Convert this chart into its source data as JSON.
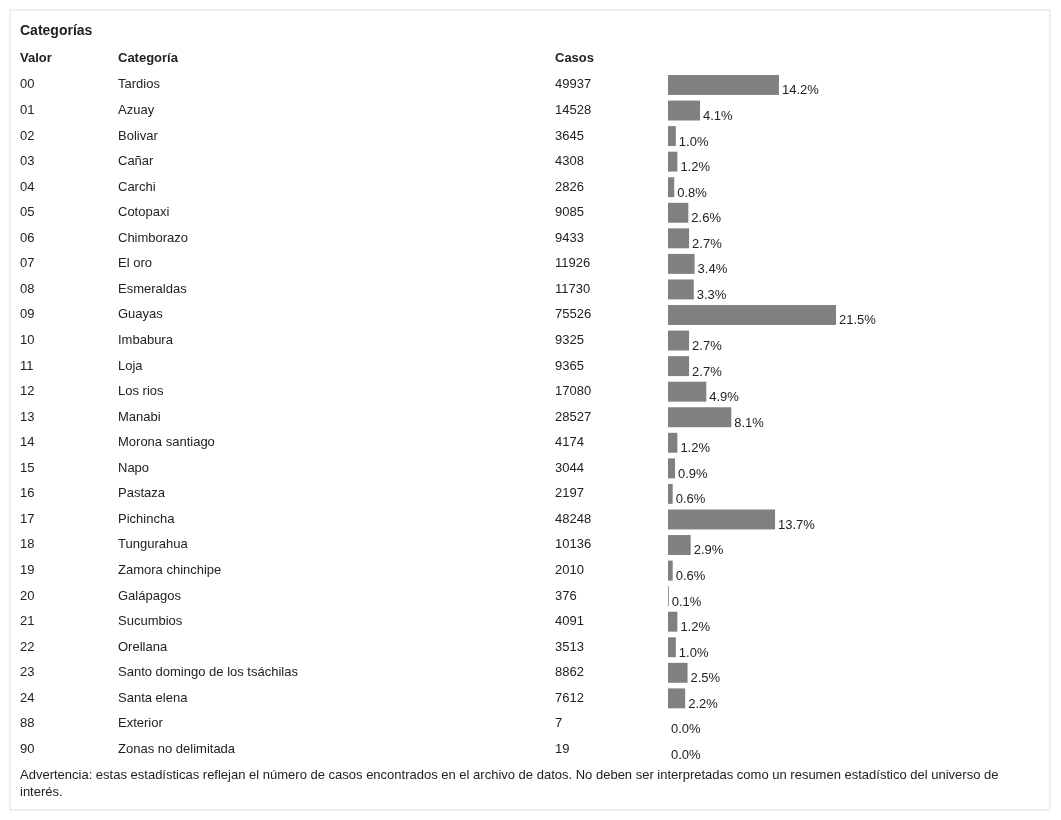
{
  "chart_data": {
    "type": "bar",
    "orientation": "horizontal",
    "title": "Categorías",
    "ylabel": "Categoría",
    "color": "#808080",
    "value_labels": [
      "14.2%",
      "4.1%",
      "1.0%",
      "1.2%",
      "0.8%",
      "2.6%",
      "2.7%",
      "3.4%",
      "3.3%",
      "21.5%",
      "2.7%",
      "2.7%",
      "4.9%",
      "8.1%",
      "1.2%",
      "0.9%",
      "0.6%",
      "13.7%",
      "2.9%",
      "0.6%",
      "0.1%",
      "1.2%",
      "1.0%",
      "2.5%",
      "2.2%",
      "0.0%",
      "0.0%"
    ],
    "categories": [
      "Tardios",
      "Azuay",
      "Bolivar",
      "Cañar",
      "Carchi",
      "Cotopaxi",
      "Chimborazo",
      "El oro",
      "Esmeraldas",
      "Guayas",
      "Imbabura",
      "Loja",
      "Los rios",
      "Manabi",
      "Morona santiago",
      "Napo",
      "Pastaza",
      "Pichincha",
      "Tungurahua",
      "Zamora chinchipe",
      "Galápagos",
      "Sucumbios",
      "Orellana",
      "Santo domingo de los tsáchilas",
      "Santa elena",
      "Exterior",
      "Zonas no delimitada"
    ],
    "values": [
      14.2,
      4.1,
      1.0,
      1.2,
      0.8,
      2.6,
      2.7,
      3.4,
      3.3,
      21.5,
      2.7,
      2.7,
      4.9,
      8.1,
      1.2,
      0.9,
      0.6,
      13.7,
      2.9,
      0.6,
      0.1,
      1.2,
      1.0,
      2.5,
      2.2,
      0.0,
      0.0
    ],
    "annotations": [
      "Valor",
      "Casos",
      "00",
      "01",
      "02",
      "03",
      "04",
      "05",
      "06",
      "07",
      "08",
      "09",
      "10",
      "11",
      "12",
      "13",
      "14",
      "15",
      "16",
      "17",
      "18",
      "19",
      "20",
      "21",
      "22",
      "23",
      "24",
      "88",
      "90",
      "49937",
      "14528",
      "3645",
      "4308",
      "2826",
      "9085",
      "9433",
      "11926",
      "11730",
      "75526",
      "9325",
      "9365",
      "17080",
      "28527",
      "4174",
      "3044",
      "2197",
      "48248",
      "10136",
      "2010",
      "376",
      "4091",
      "3513",
      "8862",
      "7612",
      "7",
      "19",
      "Advertencia: estas estadísticas reflejan el número de casos encontrados en el archivo de datos. No deben ser interpretadas como un resumen estadístico del universo de interés."
    ]
  }
}
